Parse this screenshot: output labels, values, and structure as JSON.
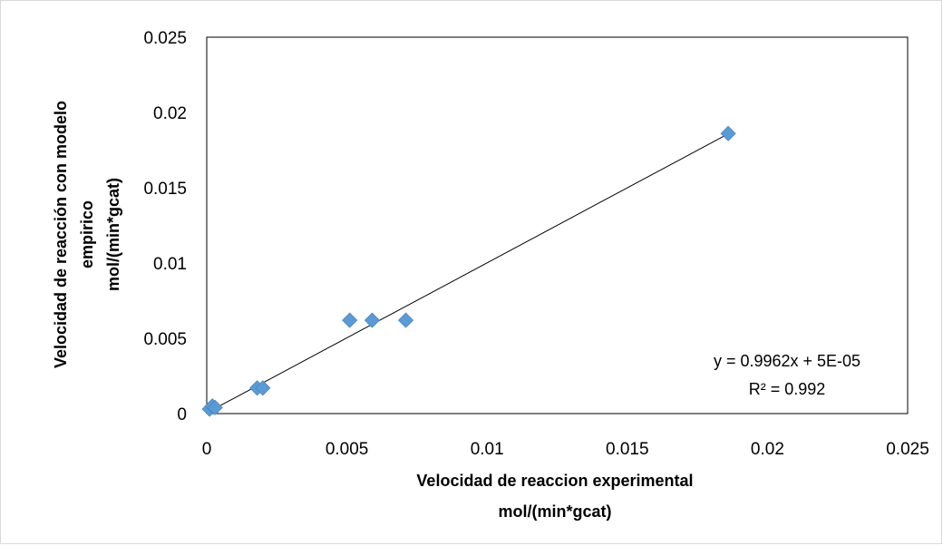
{
  "chart_data": {
    "type": "scatter",
    "title": "",
    "xlabel_lines": [
      "Velocidad de reaccion experimental",
      "mol/(min*gcat)"
    ],
    "ylabel_lines": [
      "Velocidad de reacción con modelo",
      "empirico",
      "mol/(min*gcat)"
    ],
    "xlim": [
      0,
      0.025
    ],
    "ylim": [
      0,
      0.025
    ],
    "x_ticks": [
      0,
      0.005,
      0.01,
      0.015,
      0.02,
      0.025
    ],
    "y_ticks": [
      0,
      0.005,
      0.01,
      0.015,
      0.02,
      0.025
    ],
    "x_tick_labels": [
      "0",
      "0.005",
      "0.01",
      "0.015",
      "0.02",
      "0.025"
    ],
    "y_tick_labels": [
      "0",
      "0.005",
      "0.01",
      "0.015",
      "0.02",
      "0.025"
    ],
    "grid": false,
    "legend": "none",
    "series": [
      {
        "marker": "diamond",
        "color": "#5b9bd5",
        "points": [
          {
            "x": 0.0001,
            "y": 0.0003
          },
          {
            "x": 0.0002,
            "y": 0.0005
          },
          {
            "x": 0.0003,
            "y": 0.0004
          },
          {
            "x": 0.0018,
            "y": 0.0017
          },
          {
            "x": 0.002,
            "y": 0.0017
          },
          {
            "x": 0.0051,
            "y": 0.0062
          },
          {
            "x": 0.0059,
            "y": 0.0062
          },
          {
            "x": 0.0071,
            "y": 0.0062
          },
          {
            "x": 0.0186,
            "y": 0.0186
          }
        ]
      }
    ],
    "trendline": {
      "type": "linear",
      "slope": 0.9962,
      "intercept": 5e-05,
      "x_range": [
        0,
        0.0186
      ],
      "color": "#000000",
      "equation_label": "y = 0.9962x + 5E-05",
      "r2_label": "R² = 0.992"
    }
  }
}
